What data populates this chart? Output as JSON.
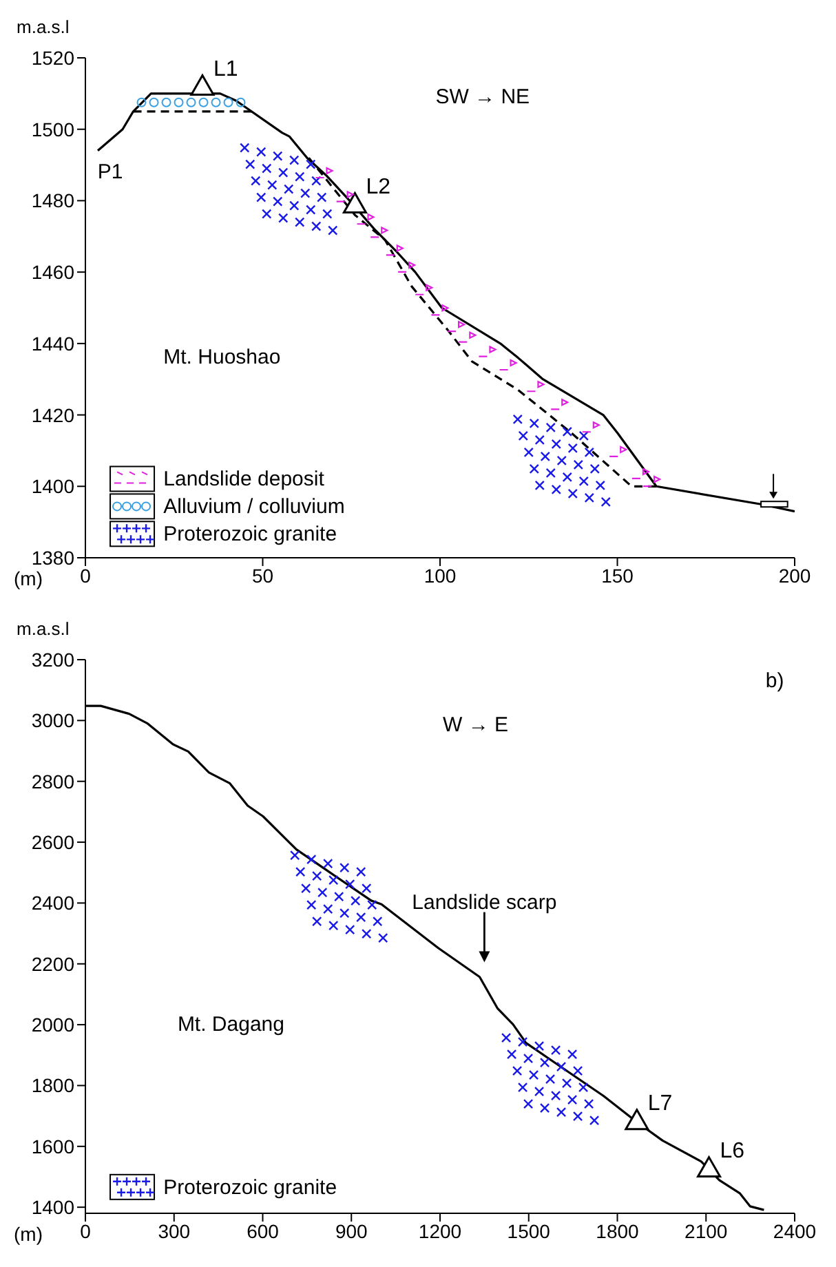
{
  "chart_data": [
    {
      "type": "line",
      "xlabel": "(m)",
      "ylabel": "m.a.s.l",
      "xlim": [
        0,
        200
      ],
      "xticks": [
        0,
        50,
        100,
        150,
        200
      ],
      "ylim": [
        1380,
        1520
      ],
      "yticks": [
        1380,
        1400,
        1420,
        1440,
        1460,
        1480,
        1500,
        1520
      ],
      "series": [
        {
          "color": "#000000",
          "line_style": "solid",
          "x": [
            3.5,
            10.5,
            13.5,
            18.5,
            38,
            42.5,
            55.5,
            57.5,
            62.5,
            68,
            74.5,
            81.5,
            87.5,
            93,
            100.5,
            117,
            122,
            129,
            146,
            150,
            161,
            190.5,
            200
          ],
          "values": [
            1494,
            1500,
            1505,
            1510,
            1510,
            1508,
            1499,
            1498,
            1492,
            1487,
            1480,
            1472,
            1466,
            1460,
            1450,
            1440,
            1436,
            1430,
            1420,
            1415,
            1400,
            1395,
            1393
          ]
        },
        {
          "color": "#000000",
          "line_style": "dashed",
          "x": [
            63,
            76,
            84.5,
            92,
            102,
            109,
            122,
            137,
            154,
            161
          ],
          "values": [
            1492,
            1476,
            1469,
            1456,
            1444,
            1435,
            1427,
            1415,
            1400,
            1400
          ]
        },
        {
          "color": "#000000",
          "line_style": "dashed",
          "x": [
            13.5,
            47
          ],
          "values": [
            1505,
            1505
          ]
        },
        {
          "type": "scatter",
          "color": "#000000",
          "marker": "triangle",
          "x": [
            33,
            76
          ],
          "values": [
            1512,
            1479
          ]
        }
      ],
      "annotations": [
        {
          "text": "L1",
          "x": 33,
          "y": 1512
        },
        {
          "text": "L2",
          "x": 76,
          "y": 1479
        },
        "P1",
        "SW → NE",
        "Mt. Huoshao",
        "Landslide deposit",
        "Alluvium / colluvium",
        "Proterozoic granite"
      ]
    },
    {
      "type": "line",
      "xlabel": "(m)",
      "ylabel": "m.a.s.l",
      "xlim": [
        0,
        2400
      ],
      "xticks": [
        0,
        300,
        600,
        900,
        1200,
        1500,
        1800,
        2100,
        2400
      ],
      "ylim": [
        1380,
        3200
      ],
      "yticks": [
        1400,
        1600,
        1800,
        2000,
        2200,
        2400,
        2600,
        2800,
        3000,
        3200
      ],
      "series": [
        {
          "color": "#000000",
          "line_style": "solid",
          "x": [
            0,
            52,
            148,
            209,
            296,
            348,
            418,
            488,
            549,
            601,
            714,
            810,
            967,
            1002,
            1194,
            1334,
            1395,
            1447,
            1491,
            1596,
            1753,
            1866,
            1953,
            2084,
            2145,
            2214,
            2249,
            2296
          ],
          "values": [
            3048,
            3048,
            3022,
            2991,
            2922,
            2898,
            2829,
            2794,
            2720,
            2685,
            2576,
            2512,
            2408,
            2396,
            2252,
            2157,
            2053,
            2001,
            1940,
            1870,
            1766,
            1680,
            1619,
            1550,
            1489,
            1446,
            1403,
            1391
          ]
        },
        {
          "type": "scatter",
          "color": "#000000",
          "marker": "triangle",
          "x": [
            1866,
            2110
          ],
          "values": [
            1684,
            1528
          ]
        }
      ],
      "annotations": [
        {
          "text": "L7",
          "x": 1866,
          "y": 1684
        },
        {
          "text": "L6",
          "x": 2110,
          "y": 1528
        },
        "Landslide scarp",
        "W → E",
        "Mt. Dagang",
        "Proterozoic granite",
        "b)"
      ]
    }
  ]
}
